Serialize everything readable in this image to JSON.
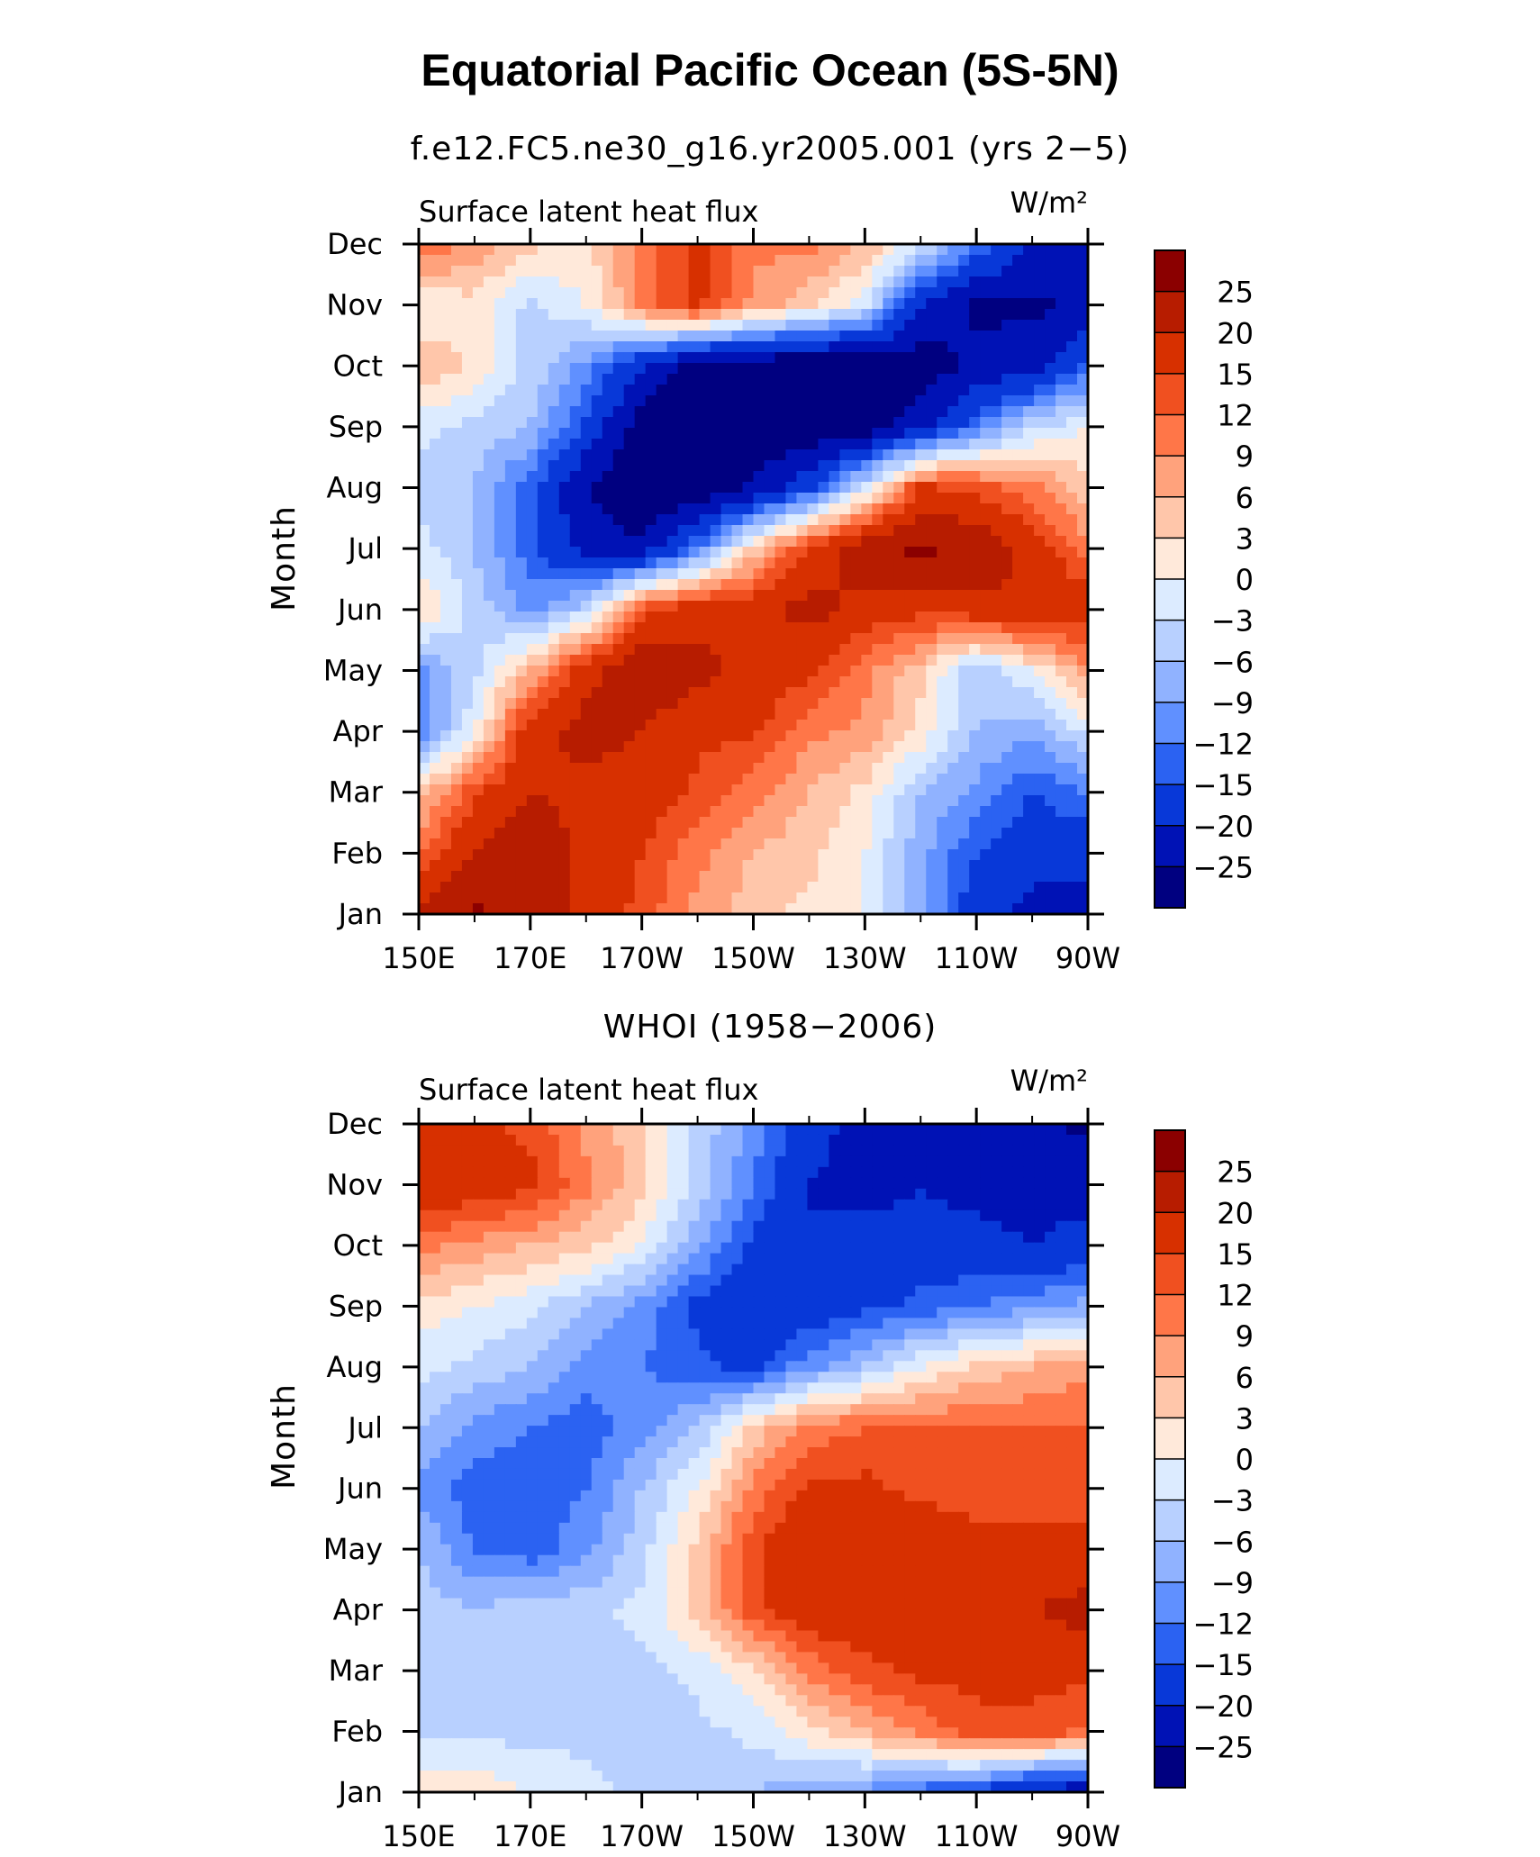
{
  "title": "Equatorial Pacific Ocean (5S-5N)",
  "chart_data": [
    {
      "type": "heatmap",
      "subtitle": "f.e12.FC5.ne30_g16.yr2005.001 (yrs 2−5)",
      "panel_label": "Surface latent heat flux",
      "units_label": "W/m²",
      "ylabel": "Month",
      "y_ticks": [
        "Jan",
        "Feb",
        "Mar",
        "Apr",
        "May",
        "Jun",
        "Jul",
        "Aug",
        "Sep",
        "Oct",
        "Nov",
        "Dec"
      ],
      "x_ticks": [
        "150E",
        "170E",
        "170W",
        "150W",
        "130W",
        "110W",
        "90W"
      ],
      "x_range": [
        150,
        270
      ],
      "colorbar": {
        "levels": [
          "25",
          "20",
          "15",
          "12",
          "9",
          "6",
          "3",
          "0",
          "−3",
          "−6",
          "−9",
          "−12",
          "−15",
          "−20",
          "−25"
        ],
        "colors": [
          "#8b0000",
          "#b71c00",
          "#d73000",
          "#f05020",
          "#ff7648",
          "#ffa27c",
          "#ffc6aa",
          "#ffe9da",
          "#dcebff",
          "#b8d0ff",
          "#90b2ff",
          "#6090ff",
          "#2b62f2",
          "#0838d8",
          "#0012b5",
          "#000080"
        ]
      },
      "field": [
        [
          22,
          26,
          23,
          18,
          14,
          8,
          4,
          2,
          0,
          -8,
          -18,
          -22,
          -22
        ],
        [
          12,
          20,
          25,
          18,
          15,
          10,
          6,
          4,
          0,
          -8,
          -15,
          -18,
          -18
        ],
        [
          4,
          14,
          20,
          18,
          18,
          14,
          10,
          6,
          2,
          -6,
          -10,
          -15,
          -12
        ],
        [
          -12,
          0,
          18,
          22,
          20,
          16,
          16,
          10,
          8,
          2,
          -6,
          -8,
          -2
        ],
        [
          -10,
          -4,
          6,
          18,
          24,
          22,
          18,
          16,
          10,
          4,
          -6,
          0,
          8
        ],
        [
          4,
          -4,
          -10,
          -4,
          14,
          18,
          18,
          22,
          18,
          16,
          18,
          20,
          18
        ],
        [
          -2,
          -6,
          -14,
          -22,
          -24,
          -12,
          4,
          16,
          24,
          26,
          24,
          18,
          10
        ],
        [
          -4,
          -6,
          -14,
          -25,
          -30,
          -30,
          -24,
          -16,
          -2,
          16,
          14,
          10,
          4
        ],
        [
          -2,
          -4,
          -6,
          -16,
          -28,
          -30,
          -30,
          -30,
          -28,
          -22,
          -12,
          -4,
          0
        ],
        [
          6,
          2,
          -4,
          -10,
          -20,
          -28,
          -30,
          -30,
          -30,
          -28,
          -24,
          -22,
          -14
        ],
        [
          0,
          2,
          -4,
          0,
          10,
          16,
          8,
          4,
          -2,
          -20,
          -26,
          -26,
          -24
        ],
        [
          12,
          8,
          4,
          2,
          10,
          16,
          10,
          10,
          6,
          -2,
          -12,
          -20,
          -22
        ]
      ]
    },
    {
      "type": "heatmap",
      "subtitle": "WHOI (1958−2006)",
      "panel_label": "Surface latent heat flux",
      "units_label": "W/m²",
      "ylabel": "Month",
      "y_ticks": [
        "Jan",
        "Feb",
        "Mar",
        "Apr",
        "May",
        "Jun",
        "Jul",
        "Aug",
        "Sep",
        "Oct",
        "Nov",
        "Dec"
      ],
      "x_ticks": [
        "150E",
        "170E",
        "170W",
        "150W",
        "130W",
        "110W",
        "90W"
      ],
      "x_range": [
        150,
        270
      ],
      "colorbar": {
        "levels": [
          "25",
          "20",
          "15",
          "12",
          "9",
          "6",
          "3",
          "0",
          "−3",
          "−6",
          "−9",
          "−12",
          "−15",
          "−20",
          "−25"
        ],
        "colors": [
          "#8b0000",
          "#b71c00",
          "#d73000",
          "#f05020",
          "#ff7648",
          "#ffa27c",
          "#ffc6aa",
          "#ffe9da",
          "#dcebff",
          "#b8d0ff",
          "#90b2ff",
          "#6090ff",
          "#2b62f2",
          "#0838d8",
          "#0012b5",
          "#000080"
        ]
      },
      "field": [
        [
          2,
          2,
          0,
          -2,
          -4,
          -4,
          -6,
          -8,
          -10,
          -14,
          -16,
          -22,
          -24
        ],
        [
          -4,
          -4,
          -4,
          -4,
          -6,
          -4,
          -2,
          2,
          6,
          10,
          14,
          14,
          12
        ],
        [
          -4,
          -6,
          -6,
          -4,
          -4,
          -2,
          2,
          10,
          14,
          16,
          16,
          16,
          16
        ],
        [
          -4,
          -6,
          -4,
          -4,
          -2,
          4,
          14,
          18,
          18,
          16,
          18,
          20,
          22
        ],
        [
          -6,
          -12,
          -14,
          -10,
          -4,
          4,
          14,
          20,
          20,
          18,
          16,
          16,
          16
        ],
        [
          -10,
          -14,
          -14,
          -12,
          -6,
          0,
          10,
          16,
          16,
          14,
          14,
          14,
          14
        ],
        [
          -6,
          -10,
          -12,
          -14,
          -10,
          -6,
          4,
          10,
          12,
          12,
          12,
          12,
          12
        ],
        [
          -2,
          -4,
          -6,
          -10,
          -12,
          -14,
          -16,
          -10,
          -6,
          0,
          4,
          6,
          8
        ],
        [
          2,
          0,
          -2,
          -6,
          -10,
          -16,
          -20,
          -18,
          -16,
          -14,
          -12,
          -10,
          -8
        ],
        [
          10,
          8,
          6,
          4,
          0,
          -8,
          -16,
          -20,
          -18,
          -18,
          -18,
          -20,
          -18
        ],
        [
          20,
          18,
          16,
          10,
          4,
          -4,
          -12,
          -20,
          -22,
          -20,
          -22,
          -22,
          -22
        ],
        [
          18,
          16,
          14,
          8,
          4,
          -4,
          -10,
          -18,
          -22,
          -24,
          -24,
          -24,
          -26
        ]
      ]
    }
  ]
}
